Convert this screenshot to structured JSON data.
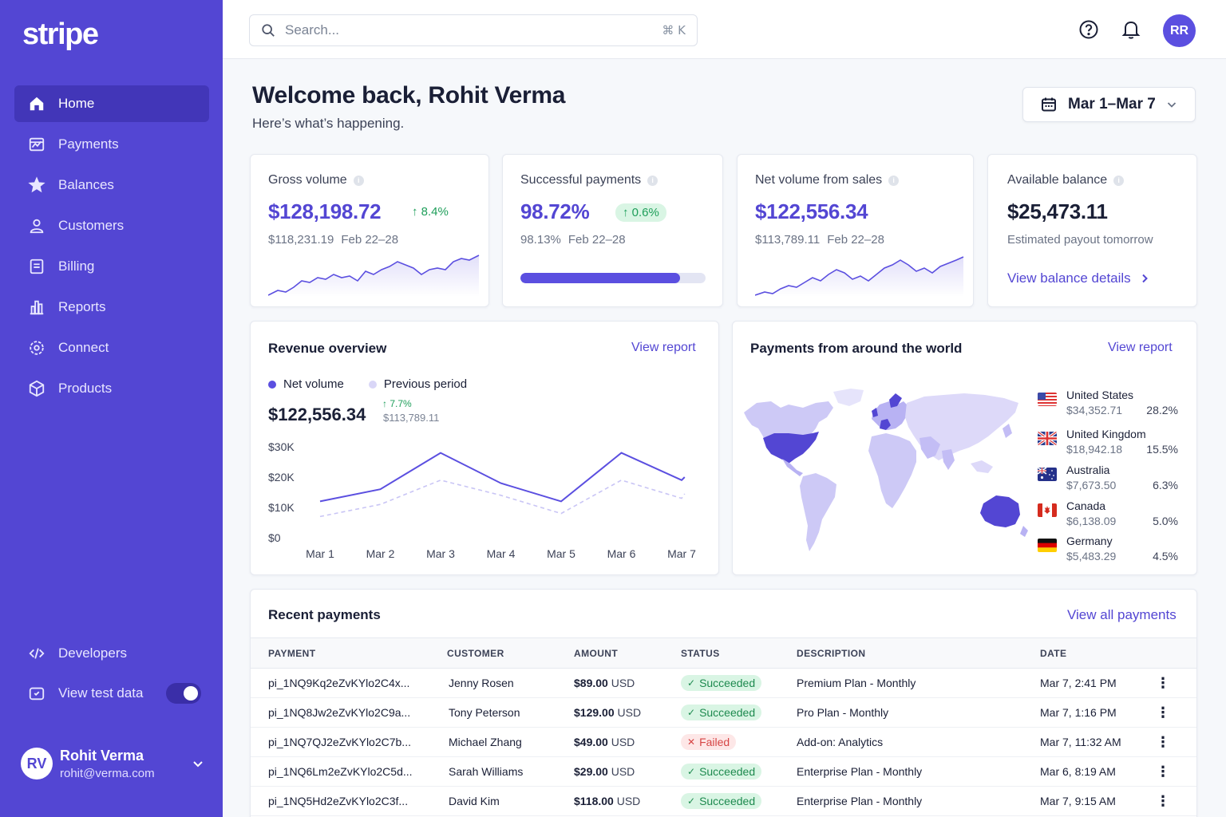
{
  "brand": {
    "logo": "stripe"
  },
  "nav": {
    "items": [
      {
        "label": "Home",
        "icon": "home-icon",
        "active": true
      },
      {
        "label": "Payments",
        "icon": "payments-icon"
      },
      {
        "label": "Balances",
        "icon": "balances-icon"
      },
      {
        "label": "Customers",
        "icon": "customers-icon"
      },
      {
        "label": "Billing",
        "icon": "billing-icon"
      },
      {
        "label": "Reports",
        "icon": "reports-icon"
      },
      {
        "label": "Connect",
        "icon": "connect-icon"
      },
      {
        "label": "Products",
        "icon": "products-icon"
      }
    ],
    "developers": "Developers",
    "test_data": "View test data"
  },
  "user": {
    "initials": "RV",
    "name": "Rohit Verma",
    "email": "rohit@verma.com"
  },
  "topbar": {
    "search_placeholder": "Search...",
    "shortcut": "⌘ K",
    "avatar_initials": "RR"
  },
  "header": {
    "title": "Welcome back, Rohit Verma",
    "subtitle": "Here’s what’s happening.",
    "date_range": "Mar 1–Mar 7"
  },
  "stats": {
    "gross": {
      "label": "Gross volume",
      "value": "$128,198.72",
      "change": "8.4%",
      "prev_value": "$118,231.19",
      "prev_period": "Feb 22–28"
    },
    "success": {
      "label": "Successful payments",
      "value": "98.72%",
      "change": "0.6%",
      "prev_value": "98.13%",
      "prev_period": "Feb 22–28",
      "progress": 0.86
    },
    "net": {
      "label": "Net volume from sales",
      "value": "$122,556.34",
      "prev_value": "$113,789.11",
      "prev_period": "Feb 22–28"
    },
    "balance": {
      "label": "Available balance",
      "value": "$25,473.11",
      "note": "Estimated payout tomorrow",
      "link": "View balance details"
    }
  },
  "revenue": {
    "title": "Revenue overview",
    "link": "View report",
    "legend_current": "Net volume",
    "legend_previous": "Previous period",
    "total": "$122,556.34",
    "change": "7.7%",
    "prev_total": "$113,789.11"
  },
  "chart_data": {
    "type": "line",
    "categories": [
      "Mar 1",
      "Mar 2",
      "Mar 3",
      "Mar 4",
      "Mar 5",
      "Mar 6",
      "Mar 7"
    ],
    "series": [
      {
        "name": "Net volume",
        "values": [
          12000,
          16000,
          28000,
          18000,
          12000,
          28000,
          19000,
          20000
        ],
        "x": [
          0,
          1,
          2,
          3,
          4,
          5,
          6,
          6.05
        ]
      },
      {
        "name": "Previous period",
        "values": [
          7000,
          11000,
          19000,
          14000,
          8000,
          19000,
          13000,
          14500
        ],
        "x": [
          0,
          1,
          2,
          3,
          4,
          5,
          6,
          6.05
        ]
      }
    ],
    "yticks": [
      "$30K",
      "$20K",
      "$10K",
      "$0"
    ],
    "ylim": [
      0,
      30000
    ],
    "grid": false,
    "colors": {
      "current": "#5b4fe0",
      "previous": "#c9c5f5"
    }
  },
  "world": {
    "title": "Payments from around the world",
    "link": "View report",
    "countries": [
      {
        "name": "United States",
        "amount": "$34,352.71",
        "pct": "28.2%",
        "flag": "us"
      },
      {
        "name": "United Kingdom",
        "amount": "$18,942.18",
        "pct": "15.5%",
        "flag": "gb"
      },
      {
        "name": "Australia",
        "amount": "$7,673.50",
        "pct": "6.3%",
        "flag": "au"
      },
      {
        "name": "Canada",
        "amount": "$6,138.09",
        "pct": "5.0%",
        "flag": "ca"
      },
      {
        "name": "Germany",
        "amount": "$5,483.29",
        "pct": "4.5%",
        "flag": "de"
      }
    ]
  },
  "payments": {
    "title": "Recent payments",
    "link": "View all payments",
    "columns": [
      "PAYMENT",
      "CUSTOMER",
      "AMOUNT",
      "STATUS",
      "DESCRIPTION",
      "DATE"
    ],
    "rows": [
      {
        "id": "pi_1NQ9Kq2eZvKYlo2C4x...",
        "customer": "Jenny Rosen",
        "amount": "$89.00",
        "currency": "USD",
        "status": "Succeeded",
        "ok": true,
        "description": "Premium Plan - Monthly",
        "date": "Mar 7, 2:41 PM"
      },
      {
        "id": "pi_1NQ8Jw2eZvKYlo2C9a...",
        "customer": "Tony Peterson",
        "amount": "$129.00",
        "currency": "USD",
        "status": "Succeeded",
        "ok": true,
        "description": "Pro Plan - Monthly",
        "date": "Mar 7, 1:16 PM"
      },
      {
        "id": "pi_1NQ7QJ2eZvKYlo2C7b...",
        "customer": "Michael Zhang",
        "amount": "$49.00",
        "currency": "USD",
        "status": "Failed",
        "ok": false,
        "description": "Add-on: Analytics",
        "date": "Mar 7, 11:32 AM"
      },
      {
        "id": "pi_1NQ6Lm2eZvKYlo2C5d...",
        "customer": "Sarah Williams",
        "amount": "$29.00",
        "currency": "USD",
        "status": "Succeeded",
        "ok": true,
        "description": "Enterprise Plan - Monthly",
        "date": "Mar 6, 8:19 AM"
      },
      {
        "id": "pi_1NQ5Hd2eZvKYlo2C3f...",
        "customer": "David Kim",
        "amount": "$118.00",
        "currency": "USD",
        "status": "Succeeded",
        "ok": true,
        "description": "Enterprise Plan - Monthly",
        "date": "Mar 7, 9:15 AM"
      }
    ]
  }
}
